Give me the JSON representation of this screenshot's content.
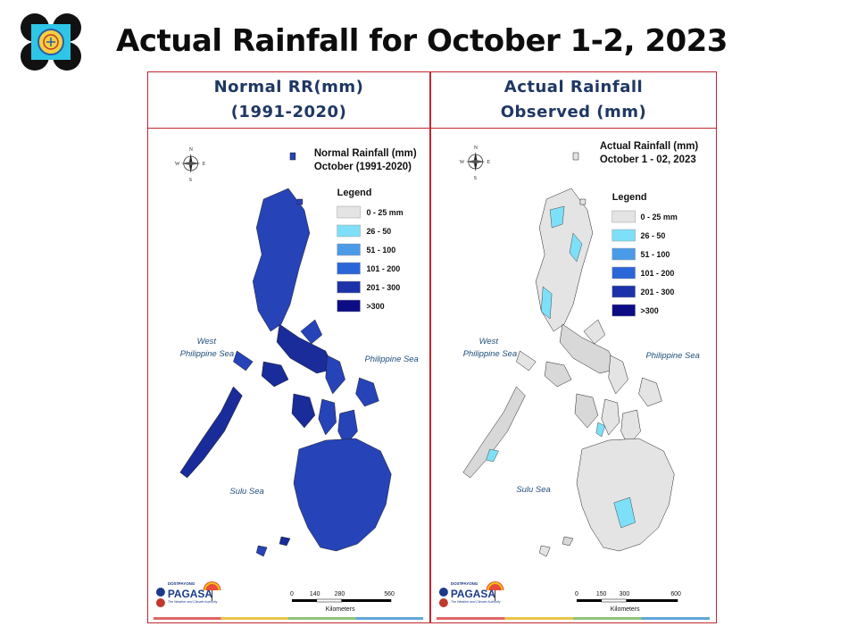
{
  "slide": {
    "title": "Actual Rainfall for October 1-2, 2023"
  },
  "colors": {
    "frame": "#c0272d",
    "heading": "#1f3763",
    "legend_bins": [
      "#e4e4e4",
      "#7ee0f8",
      "#4a9ae8",
      "#2b66d8",
      "#1c32a8",
      "#0c0c85"
    ],
    "strip": [
      "#e06666",
      "#e7c54a",
      "#8fc47a",
      "#5fa7d9"
    ]
  },
  "legend": {
    "title": "Legend",
    "bins": [
      "0 - 25 mm",
      "26 - 50",
      "51 - 100",
      "101 - 200",
      "201 - 300",
      ">300"
    ]
  },
  "seas": {
    "west_line1": "West",
    "west_line2": "Philippine Sea",
    "east": "Philippine Sea",
    "south": "Sulu Sea"
  },
  "compass": {
    "n": "N",
    "s": "S",
    "e": "E",
    "w": "W"
  },
  "branding": {
    "dost": "DOST",
    "payong": "PAYONG",
    "name": "PAGASA",
    "tagline": "The Weather and Climate Authority"
  },
  "panels": [
    {
      "header_line1": "Normal RR(mm)",
      "header_line2": "(1991-2020)",
      "map_title_line1": "Normal Rainfall (mm)",
      "map_title_line2": "October (1991-2020)",
      "scale_ticks": [
        "0",
        "140",
        "280",
        "560"
      ],
      "scale_unit": "Kilometers",
      "fill": "#2643b8",
      "fill_dark": "#1a2c99",
      "fill_accent": "#2f6bd8"
    },
    {
      "header_line1": "Actual Rainfall",
      "header_line2": "Observed (mm)",
      "map_title_line1": "Actual Rainfall (mm)",
      "map_title_line2": "October 1 - 02, 2023",
      "scale_ticks": [
        "0",
        "150",
        "300",
        "600"
      ],
      "scale_unit": "Kilometers",
      "fill": "#e4e4e4",
      "fill_dark": "#d8d8d8",
      "fill_accent": "#7ee0f8"
    }
  ]
}
